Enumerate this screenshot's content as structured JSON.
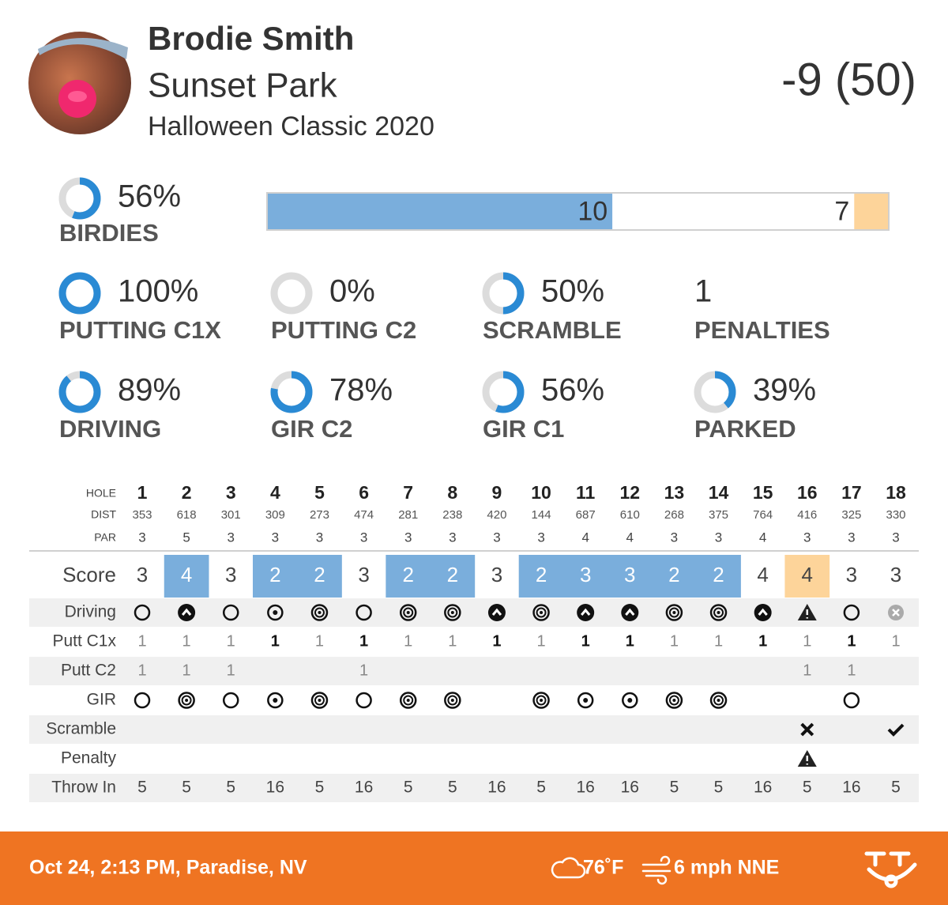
{
  "header": {
    "name": "Brodie Smith",
    "course": "Sunset Park",
    "event": "Halloween Classic 2020",
    "score": "-9 (50)"
  },
  "birdies": {
    "value": 56,
    "label": "56%",
    "title": "BIRDIES",
    "bar": {
      "values": [
        10,
        7,
        1
      ],
      "value_labels": [
        "10",
        "7",
        null
      ],
      "colors": [
        "#7aaedc",
        "#ffffff",
        "#fdd49a"
      ]
    }
  },
  "stats": [
    {
      "value": 100,
      "label": "100%",
      "title": "PUTTING C1X"
    },
    {
      "value": 0,
      "label": "0%",
      "title": "PUTTING C2"
    },
    {
      "value": 50,
      "label": "50%",
      "title": "SCRAMBLE"
    },
    {
      "value": 1,
      "title": "PENALTIES"
    },
    {
      "value": 89,
      "label": "89%",
      "title": "DRIVING"
    },
    {
      "value": 78,
      "label": "78%",
      "title": "GIR C2"
    },
    {
      "value": 56,
      "label": "56%",
      "title": "GIR C1"
    },
    {
      "value": 39,
      "label": "39%",
      "title": "PARKED"
    }
  ],
  "table": {
    "headers": [
      "HOLE",
      "DIST",
      "PAR"
    ],
    "holes": [
      1,
      2,
      3,
      4,
      5,
      6,
      7,
      8,
      9,
      10,
      11,
      12,
      13,
      14,
      15,
      16,
      17,
      18
    ],
    "dist": [
      353,
      618,
      301,
      309,
      273,
      474,
      281,
      238,
      420,
      144,
      687,
      610,
      268,
      375,
      764,
      416,
      325,
      330
    ],
    "par": [
      3,
      5,
      3,
      3,
      3,
      3,
      3,
      3,
      3,
      3,
      4,
      4,
      3,
      3,
      4,
      3,
      3,
      3
    ],
    "rows": [
      {
        "label": "Score",
        "values": [
          3,
          4,
          3,
          2,
          2,
          3,
          2,
          2,
          3,
          2,
          3,
          3,
          2,
          2,
          4,
          4,
          3,
          3
        ]
      },
      {
        "label": "Driving"
      },
      {
        "label": "Putt C1x",
        "values": [
          1,
          1,
          1,
          1,
          1,
          1,
          1,
          1,
          1,
          1,
          1,
          1,
          1,
          1,
          1,
          1,
          1,
          1
        ]
      },
      {
        "label": "Putt C2",
        "values": [
          1,
          1,
          1,
          null,
          null,
          1,
          null,
          null,
          null,
          null,
          null,
          null,
          null,
          null,
          null,
          1,
          1,
          null
        ]
      },
      {
        "label": "GIR"
      },
      {
        "label": "Scramble"
      },
      {
        "label": "Penalty"
      },
      {
        "label": "Throw In",
        "values": [
          5,
          5,
          5,
          16,
          5,
          16,
          5,
          5,
          16,
          5,
          16,
          16,
          5,
          5,
          16,
          5,
          16,
          5
        ]
      }
    ],
    "colors": {
      "under": "#7aaedc",
      "over": "#fdd49a"
    }
  },
  "footer": {
    "datetime": "Oct 24, 2:13 PM, Paradise, NV",
    "temp": "76˚F",
    "wind": "6 mph NNE"
  }
}
